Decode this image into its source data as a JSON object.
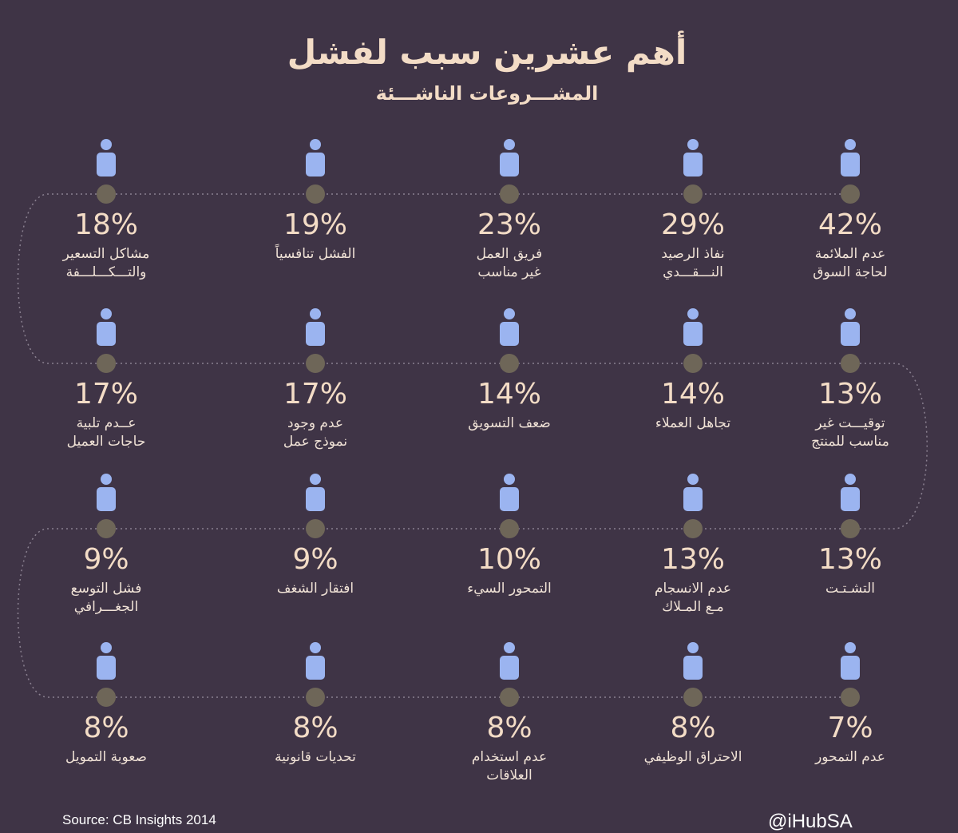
{
  "header": {
    "title": "أهم عشرين سبب لفشل",
    "subtitle": "المشـــروعات الناشـــئة"
  },
  "items": [
    {
      "percent": "42%",
      "lines": [
        "عدم الملائمة",
        "لحاجة السوق"
      ]
    },
    {
      "percent": "29%",
      "lines": [
        "نفاذ الرصيد",
        "النـــقـــدي"
      ]
    },
    {
      "percent": "23%",
      "lines": [
        "فريق العمل",
        "غير مناسب"
      ]
    },
    {
      "percent": "19%",
      "lines": [
        "الفشل تنافسياً"
      ]
    },
    {
      "percent": "18%",
      "lines": [
        "مشاكل التسعير",
        "والتـــكـــلـــفة"
      ]
    },
    {
      "percent": "13%",
      "lines": [
        "توقيـــت غير",
        "مناسب للمنتج"
      ]
    },
    {
      "percent": "14%",
      "lines": [
        "تجاهل العملاء"
      ]
    },
    {
      "percent": "14%",
      "lines": [
        "ضعف التسويق"
      ]
    },
    {
      "percent": "17%",
      "lines": [
        "عدم وجود",
        "نموذج عمل"
      ]
    },
    {
      "percent": "17%",
      "lines": [
        "عــدم تلبية",
        "حاجات العميل"
      ]
    },
    {
      "percent": "13%",
      "lines": [
        "التشـتـت"
      ]
    },
    {
      "percent": "13%",
      "lines": [
        "عدم الانسجام",
        "مـع المـلاك"
      ]
    },
    {
      "percent": "10%",
      "lines": [
        "التمحور السيء"
      ]
    },
    {
      "percent": "9%",
      "lines": [
        "افتقار الشغف"
      ]
    },
    {
      "percent": "9%",
      "lines": [
        "فشل التوسع",
        "الجغـــرافي"
      ]
    },
    {
      "percent": "7%",
      "lines": [
        "عدم التمحور"
      ]
    },
    {
      "percent": "8%",
      "lines": [
        "الاحتراق  الوظيفي"
      ]
    },
    {
      "percent": "8%",
      "lines": [
        "عدم استخدام",
        "العلاقات"
      ]
    },
    {
      "percent": "8%",
      "lines": [
        "تحديات قانونية"
      ]
    },
    {
      "percent": "8%",
      "lines": [
        "صعوبة التمويل"
      ]
    }
  ],
  "footer": {
    "source": "Source: CB Insights 2014",
    "handle": "@iHubSA"
  }
}
